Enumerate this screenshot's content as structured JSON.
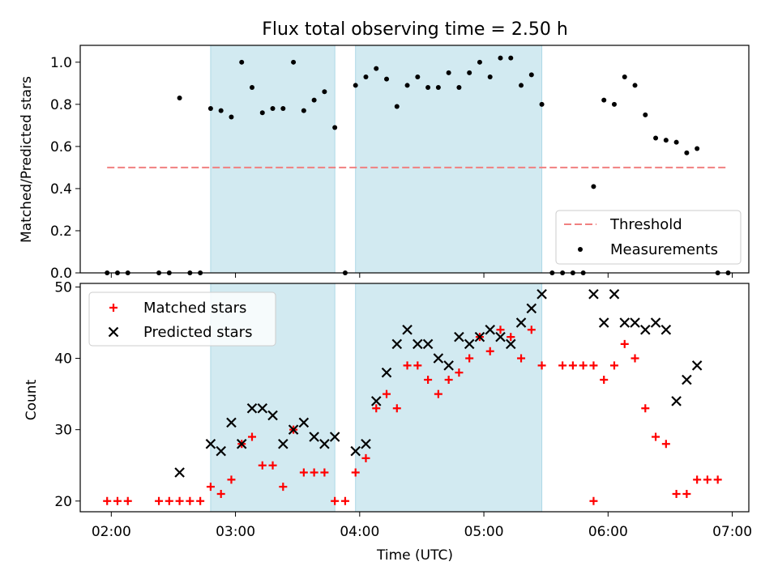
{
  "chart_data": {
    "title": "Flux total observing time = 2.50 h",
    "xlabel": "Time (UTC)",
    "x_ticks": [
      "02:00",
      "03:00",
      "04:00",
      "05:00",
      "06:00",
      "07:00"
    ],
    "x_range": [
      "01:45",
      "07:08"
    ],
    "shaded_intervals": [
      [
        "02:48",
        "03:48"
      ],
      [
        "03:58",
        "05:28"
      ]
    ],
    "colors": {
      "shade": "#add8e6",
      "threshold": "#f08080",
      "measurements": "#000000",
      "matched": "#ff0000",
      "predicted": "#000000"
    },
    "charts": [
      {
        "type": "scatter",
        "ylabel": "Matched/Predicted stars",
        "ylim": [
          0.0,
          1.08
        ],
        "y_ticks": [
          "0.0",
          "0.2",
          "0.4",
          "0.6",
          "0.8",
          "1.0"
        ],
        "legend": {
          "location": "lower right",
          "threshold_label": "Threshold",
          "measurements_label": "Measurements"
        },
        "threshold": {
          "value": 0.5,
          "x_start": "01:58",
          "x_end": "06:58"
        },
        "measurements": [
          [
            "01:58",
            0.0
          ],
          [
            "02:03",
            0.0
          ],
          [
            "02:08",
            0.0
          ],
          [
            "02:23",
            0.0
          ],
          [
            "02:28",
            0.0
          ],
          [
            "02:33",
            0.83
          ],
          [
            "02:38",
            0.0
          ],
          [
            "02:43",
            0.0
          ],
          [
            "02:48",
            0.78
          ],
          [
            "02:53",
            0.77
          ],
          [
            "02:58",
            0.74
          ],
          [
            "03:03",
            1.0
          ],
          [
            "03:08",
            0.88
          ],
          [
            "03:13",
            0.76
          ],
          [
            "03:18",
            0.78
          ],
          [
            "03:23",
            0.78
          ],
          [
            "03:28",
            1.0
          ],
          [
            "03:33",
            0.77
          ],
          [
            "03:38",
            0.82
          ],
          [
            "03:43",
            0.86
          ],
          [
            "03:48",
            0.69
          ],
          [
            "03:53",
            0.0
          ],
          [
            "03:58",
            0.89
          ],
          [
            "04:03",
            0.93
          ],
          [
            "04:08",
            0.97
          ],
          [
            "04:13",
            0.92
          ],
          [
            "04:18",
            0.79
          ],
          [
            "04:23",
            0.89
          ],
          [
            "04:28",
            0.93
          ],
          [
            "04:33",
            0.88
          ],
          [
            "04:38",
            0.88
          ],
          [
            "04:43",
            0.95
          ],
          [
            "04:48",
            0.88
          ],
          [
            "04:53",
            0.95
          ],
          [
            "04:58",
            1.0
          ],
          [
            "05:03",
            0.93
          ],
          [
            "05:08",
            1.02
          ],
          [
            "05:13",
            1.02
          ],
          [
            "05:18",
            0.89
          ],
          [
            "05:23",
            0.94
          ],
          [
            "05:28",
            0.8
          ],
          [
            "05:33",
            0.0
          ],
          [
            "05:38",
            0.0
          ],
          [
            "05:43",
            0.0
          ],
          [
            "05:48",
            0.0
          ],
          [
            "05:53",
            0.41
          ],
          [
            "05:58",
            0.82
          ],
          [
            "06:03",
            0.8
          ],
          [
            "06:08",
            0.93
          ],
          [
            "06:13",
            0.89
          ],
          [
            "06:18",
            0.75
          ],
          [
            "06:23",
            0.64
          ],
          [
            "06:28",
            0.63
          ],
          [
            "06:33",
            0.62
          ],
          [
            "06:38",
            0.57
          ],
          [
            "06:43",
            0.59
          ],
          [
            "06:53",
            0.0
          ],
          [
            "06:58",
            0.0
          ]
        ]
      },
      {
        "type": "scatter",
        "ylabel": "Count",
        "ylim": [
          18.5,
          50.5
        ],
        "y_ticks": [
          "20",
          "30",
          "40",
          "50"
        ],
        "legend": {
          "location": "upper left",
          "matched_label": "Matched stars",
          "predicted_label": "Predicted stars"
        },
        "matched": [
          [
            "01:58",
            20
          ],
          [
            "02:03",
            20
          ],
          [
            "02:08",
            20
          ],
          [
            "02:23",
            20
          ],
          [
            "02:28",
            20
          ],
          [
            "02:33",
            20
          ],
          [
            "02:38",
            20
          ],
          [
            "02:43",
            20
          ],
          [
            "02:48",
            22
          ],
          [
            "02:53",
            21
          ],
          [
            "02:58",
            23
          ],
          [
            "03:03",
            28
          ],
          [
            "03:08",
            29
          ],
          [
            "03:13",
            25
          ],
          [
            "03:18",
            25
          ],
          [
            "03:23",
            22
          ],
          [
            "03:28",
            30
          ],
          [
            "03:33",
            24
          ],
          [
            "03:38",
            24
          ],
          [
            "03:43",
            24
          ],
          [
            "03:48",
            20
          ],
          [
            "03:53",
            20
          ],
          [
            "03:58",
            24
          ],
          [
            "04:03",
            26
          ],
          [
            "04:08",
            33
          ],
          [
            "04:13",
            35
          ],
          [
            "04:18",
            33
          ],
          [
            "04:23",
            39
          ],
          [
            "04:28",
            39
          ],
          [
            "04:33",
            37
          ],
          [
            "04:38",
            35
          ],
          [
            "04:43",
            37
          ],
          [
            "04:48",
            38
          ],
          [
            "04:53",
            40
          ],
          [
            "04:58",
            43
          ],
          [
            "05:03",
            41
          ],
          [
            "05:08",
            44
          ],
          [
            "05:13",
            43
          ],
          [
            "05:18",
            40
          ],
          [
            "05:23",
            44
          ],
          [
            "05:28",
            39
          ],
          [
            "05:38",
            39
          ],
          [
            "05:43",
            39
          ],
          [
            "05:48",
            39
          ],
          [
            "05:53",
            39
          ],
          [
            "05:53",
            20
          ],
          [
            "05:58",
            37
          ],
          [
            "06:03",
            39
          ],
          [
            "06:08",
            42
          ],
          [
            "06:13",
            40
          ],
          [
            "06:18",
            33
          ],
          [
            "06:23",
            29
          ],
          [
            "06:28",
            28
          ],
          [
            "06:33",
            21
          ],
          [
            "06:38",
            21
          ],
          [
            "06:43",
            23
          ],
          [
            "06:48",
            23
          ],
          [
            "06:53",
            23
          ]
        ],
        "predicted": [
          [
            "02:33",
            24
          ],
          [
            "02:48",
            28
          ],
          [
            "02:53",
            27
          ],
          [
            "02:58",
            31
          ],
          [
            "03:03",
            28
          ],
          [
            "03:08",
            33
          ],
          [
            "03:13",
            33
          ],
          [
            "03:18",
            32
          ],
          [
            "03:23",
            28
          ],
          [
            "03:28",
            30
          ],
          [
            "03:33",
            31
          ],
          [
            "03:38",
            29
          ],
          [
            "03:43",
            28
          ],
          [
            "03:48",
            29
          ],
          [
            "03:58",
            27
          ],
          [
            "04:03",
            28
          ],
          [
            "04:08",
            34
          ],
          [
            "04:13",
            38
          ],
          [
            "04:18",
            42
          ],
          [
            "04:23",
            44
          ],
          [
            "04:28",
            42
          ],
          [
            "04:33",
            42
          ],
          [
            "04:38",
            40
          ],
          [
            "04:43",
            39
          ],
          [
            "04:48",
            43
          ],
          [
            "04:53",
            42
          ],
          [
            "04:58",
            43
          ],
          [
            "05:03",
            44
          ],
          [
            "05:08",
            43
          ],
          [
            "05:13",
            42
          ],
          [
            "05:18",
            45
          ],
          [
            "05:23",
            47
          ],
          [
            "05:28",
            49
          ],
          [
            "05:53",
            49
          ],
          [
            "05:58",
            45
          ],
          [
            "06:03",
            49
          ],
          [
            "06:08",
            45
          ],
          [
            "06:13",
            45
          ],
          [
            "06:18",
            44
          ],
          [
            "06:23",
            45
          ],
          [
            "06:28",
            44
          ],
          [
            "06:33",
            34
          ],
          [
            "06:38",
            37
          ],
          [
            "06:43",
            39
          ]
        ]
      }
    ]
  }
}
